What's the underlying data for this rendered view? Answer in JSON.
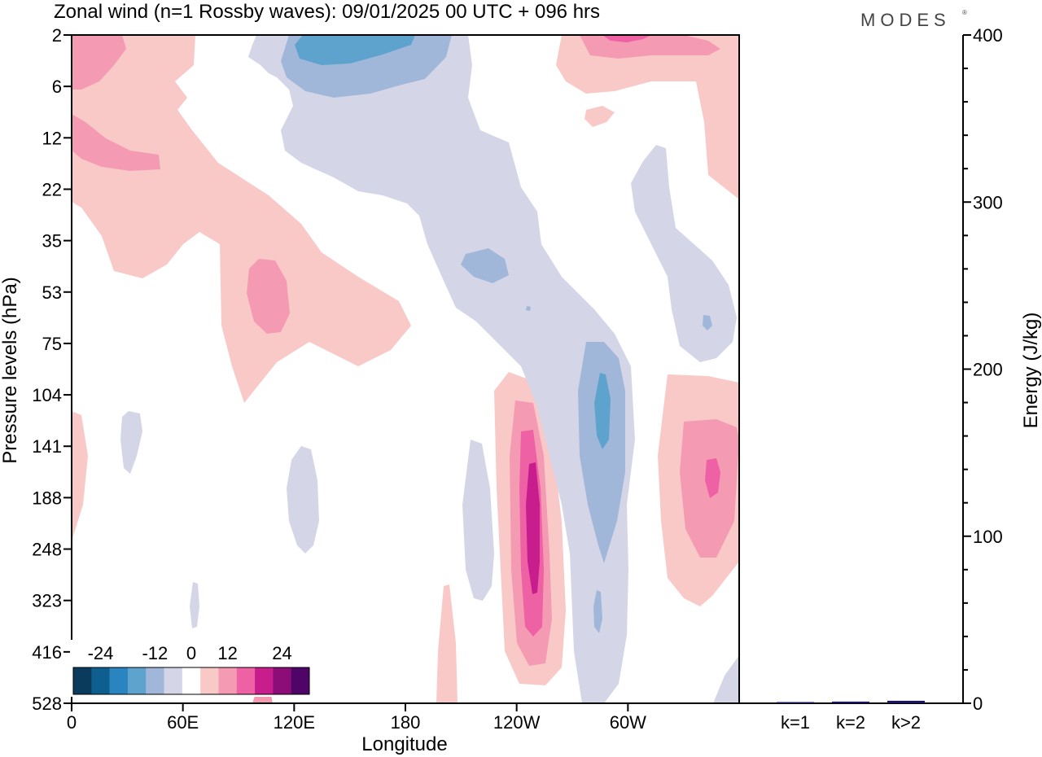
{
  "title": "Zonal wind (n=1 Rossby waves):  09/01/2025  00 UTC  + 096 hrs",
  "logo": "MODES",
  "chart_data": [
    {
      "type": "heatmap",
      "title": "Zonal wind (n=1 Rossby waves):  09/01/2025  00 UTC  + 096 hrs",
      "xlabel": "Longitude",
      "ylabel": "Pressure levels (hPa)",
      "x_ticks": [
        "0",
        "60E",
        "120E",
        "180",
        "120W",
        "60W"
      ],
      "y_ticks": [
        "2",
        "6",
        "12",
        "22",
        "35",
        "53",
        "75",
        "104",
        "141",
        "188",
        "248",
        "323",
        "416",
        "528"
      ],
      "xlim": [
        0,
        360
      ],
      "colorbar": {
        "labels": [
          "-24",
          "-12",
          "0",
          "12",
          "24"
        ],
        "levels": [
          -30,
          -24,
          -18,
          -12,
          -6,
          0,
          6,
          12,
          18,
          24,
          30
        ],
        "colors": [
          "#0a3a5c",
          "#0e5e90",
          "#2a84bf",
          "#5ea3cd",
          "#a1b7d9",
          "#d4d6e8",
          "#ffffff",
          "#f9c9c8",
          "#f59ab3",
          "#ee61a5",
          "#c71d8d",
          "#8c0c78",
          "#4f0468"
        ]
      },
      "contours": [
        {
          "sign": "positive",
          "level": 6,
          "region": "upper-left band sloping from 0 to 120E, 2-104 hPa"
        },
        {
          "sign": "positive",
          "level": 12,
          "region": "0-40E near 2-20 hPa; 95E-120E near 50-75 hPa"
        },
        {
          "sign": "positive",
          "level": 6,
          "region": "120W-140W column, 100-500 hPa; max near 24 at 248 hPa"
        },
        {
          "sign": "positive",
          "level": 12,
          "region": "15W-40W near 104-300 hPa; 18 core near 188 hPa"
        },
        {
          "sign": "negative",
          "level": -6,
          "region": "diagonal band from 120E at 2 hPa to 60W at 528 hPa"
        },
        {
          "sign": "negative",
          "level": -12,
          "region": "120E-150E near 2-6 hPa; 65W-80W near 90-250 hPa"
        }
      ]
    },
    {
      "type": "bar",
      "categories": [
        "k=1",
        "k=2",
        "k>2"
      ],
      "values": [
        0.5,
        1.0,
        1.5
      ],
      "ylabel": "Energy (J/kg)",
      "ylim": [
        0,
        400
      ],
      "y_ticks": [
        "0",
        "100",
        "200",
        "300",
        "400"
      ]
    }
  ]
}
